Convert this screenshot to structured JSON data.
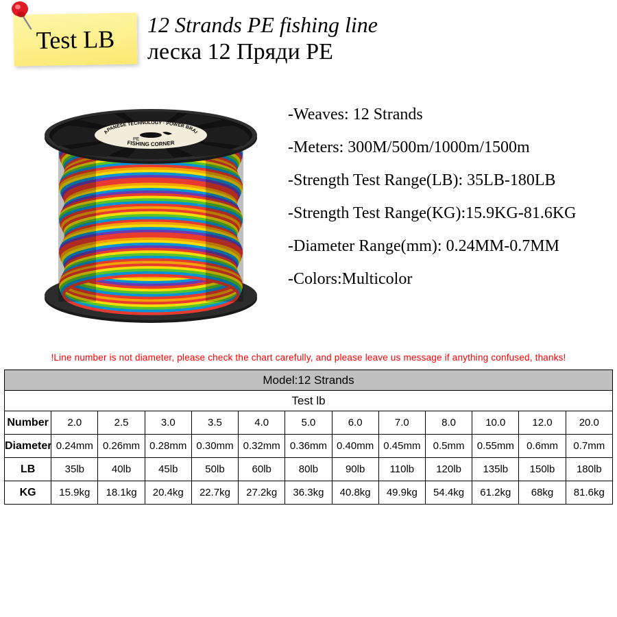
{
  "sticky": {
    "label": "Test  LB"
  },
  "titles": {
    "en": "12 Strands PE fishing line",
    "ru": "леска 12 Пряди PE"
  },
  "specs": [
    "-Weaves: 12 Strands",
    "-Meters: 300M/500m/1000m/1500m",
    "-Strength Test Range(LB): 35LB-180LB",
    "-Strength Test Range(KG):15.9KG-81.6KG",
    "-Diameter Range(mm): 0.24MM-0.7MM",
    "-Colors:Multicolor"
  ],
  "warning": "!Line number is not diameter, please check the chart carefully, and please leave us message if anything confused, thanks!",
  "table": {
    "model": "Model:12 Strands",
    "test": "Test lb",
    "rows": [
      {
        "label": "Number",
        "cells": [
          "2.0",
          "2.5",
          "3.0",
          "3.5",
          "4.0",
          "5.0",
          "6.0",
          "7.0",
          "8.0",
          "10.0",
          "12.0",
          "20.0"
        ]
      },
      {
        "label": "Diameter",
        "cells": [
          "0.24mm",
          "0.26mm",
          "0.28mm",
          "0.30mm",
          "0.32mm",
          "0.36mm",
          "0.40mm",
          "0.45mm",
          "0.5mm",
          "0.55mm",
          "0.6mm",
          "0.7mm"
        ]
      },
      {
        "label": "LB",
        "cells": [
          "35lb",
          "40lb",
          "45lb",
          "50lb",
          "60lb",
          "80lb",
          "90lb",
          "110lb",
          "120lb",
          "135lb",
          "150lb",
          "180lb"
        ]
      },
      {
        "label": "KG",
        "cells": [
          "15.9kg",
          "18.1kg",
          "20.4kg",
          "22.7kg",
          "27.2kg",
          "36.3kg",
          "40.8kg",
          "49.9kg",
          "54.4kg",
          "61.2kg",
          "68kg",
          "81.6kg"
        ]
      }
    ]
  },
  "spool": {
    "rim_color": "#1a1a1a",
    "label_bg": "#f2edda",
    "brand_top": "POWER BRAID",
    "brand_mid": "FISHING CORNER",
    "tech": "JAPANESE TECHNOLOGY",
    "thread_colors": [
      "#e83a2e",
      "#f5a100",
      "#f5dd00",
      "#57c22a",
      "#0094d6",
      "#6a3ab2",
      "#e83a2e",
      "#f5a100",
      "#f5dd00",
      "#57c22a",
      "#0094d6",
      "#6a3ab2",
      "#e83a2e",
      "#f5a100"
    ]
  },
  "colors": {
    "warning": "#ff0000",
    "grey": "#c0c0c0"
  }
}
